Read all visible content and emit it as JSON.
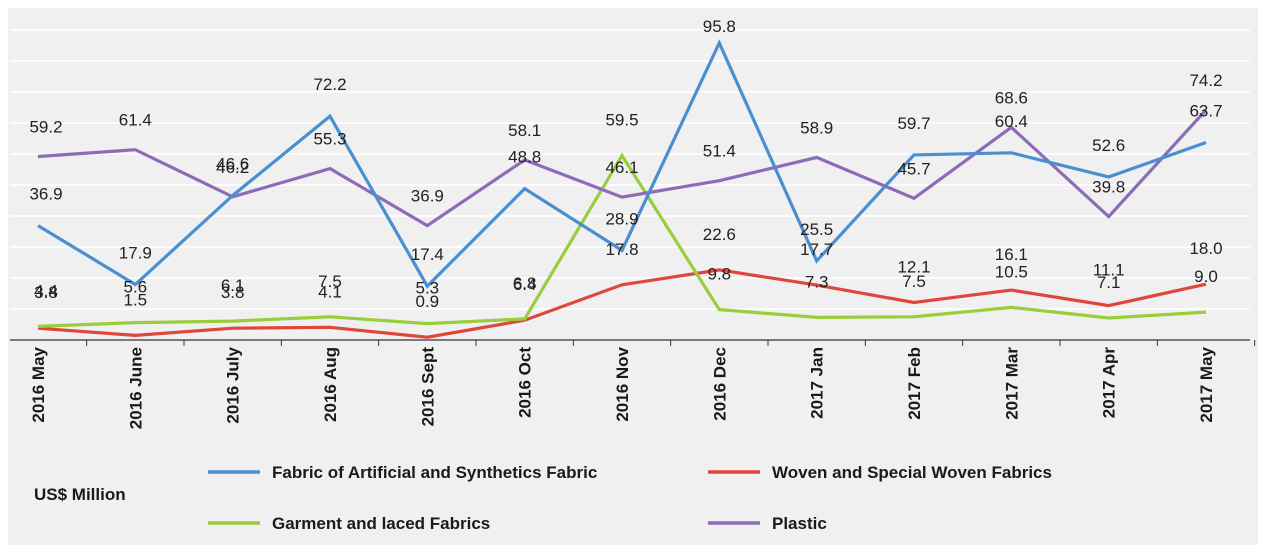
{
  "chart_data": {
    "type": "line",
    "categories": [
      "2016 May",
      "2016 June",
      "2016 July",
      "2016 Aug",
      "2016 Sept",
      "2016 Oct",
      "2016 Nov",
      "2016 Dec",
      "2017 Jan",
      "2017 Feb",
      "2017 Mar",
      "2017 Apr",
      "2017 May"
    ],
    "unit_label": "US$ Million",
    "ylim": [
      0,
      100
    ],
    "grid": "horizontal",
    "legend_placement": "bottom",
    "series": [
      {
        "name": "Fabric of  Artificial and Synthetics Fabric",
        "color": "#4a8fcf",
        "values": [
          36.9,
          17.9,
          46.6,
          72.2,
          17.4,
          48.8,
          28.9,
          95.8,
          25.5,
          59.7,
          60.4,
          52.6,
          63.7
        ]
      },
      {
        "name": "Woven and Special Woven Fabrics",
        "color": "#e0463b",
        "values": [
          3.8,
          1.5,
          3.8,
          4.1,
          0.9,
          6.4,
          17.8,
          22.6,
          17.7,
          12.1,
          16.1,
          11.1,
          18.0
        ]
      },
      {
        "name": "Garment and laced Fabrics",
        "color": "#9acd3c",
        "values": [
          4.4,
          5.6,
          6.1,
          7.5,
          5.3,
          6.8,
          59.5,
          9.8,
          7.3,
          7.5,
          10.5,
          7.1,
          9.0
        ]
      },
      {
        "name": "Plastic",
        "color": "#8e6bb8",
        "values": [
          59.2,
          61.4,
          46.2,
          55.3,
          36.9,
          58.1,
          46.1,
          51.4,
          58.9,
          45.7,
          68.6,
          39.8,
          74.2
        ]
      }
    ]
  }
}
